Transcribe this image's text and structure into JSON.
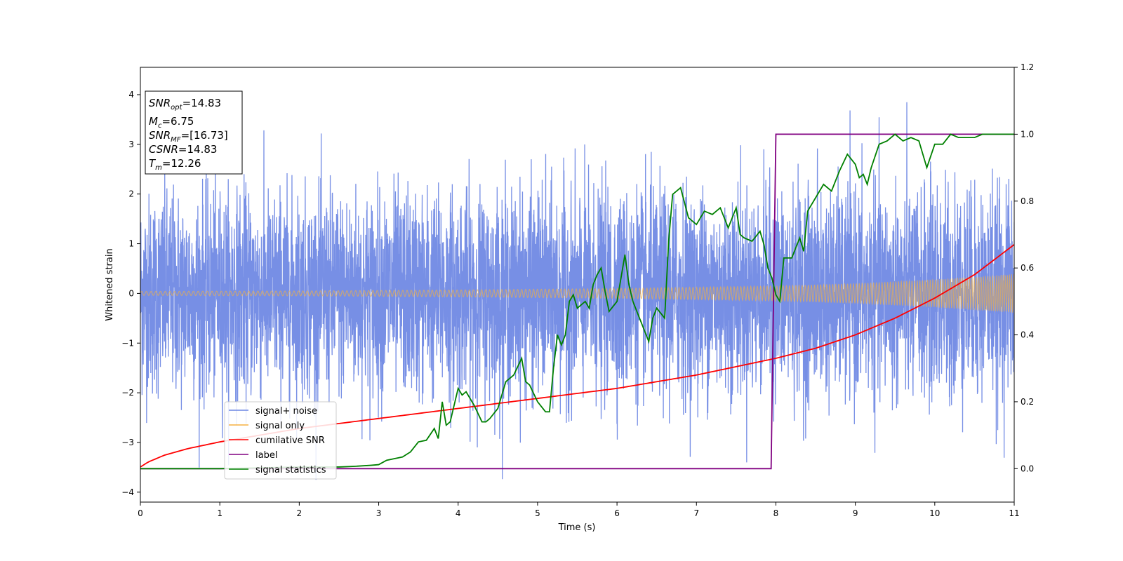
{
  "chart_data": {
    "type": "line",
    "xlabel": "Time (s)",
    "ylabel": "Whitened strain",
    "xlim": [
      0,
      11
    ],
    "ylim": [
      -4.2,
      4.55
    ],
    "y2lim": [
      -0.1,
      1.2
    ],
    "xticks": [
      "0",
      "1",
      "2",
      "3",
      "4",
      "5",
      "6",
      "7",
      "8",
      "9",
      "10",
      "11"
    ],
    "yticks": [
      "−4",
      "−3",
      "−2",
      "−1",
      "0",
      "1",
      "2",
      "3",
      "4"
    ],
    "y2ticks": [
      "0.0",
      "0.2",
      "0.4",
      "0.6",
      "0.8",
      "1.0",
      "1.2"
    ],
    "grid": false,
    "legend_position": "lower-left",
    "legend": [
      "signal+ noise",
      "signal only",
      "cumilative SNR",
      "label",
      "signal statistics"
    ],
    "colors": {
      "signal_noise": "#6b86e3",
      "signal_only": "#f5b041",
      "cumulative_snr": "#ff0000",
      "label": "#800080",
      "signal_statistics": "#008000"
    },
    "stats_box": {
      "snr_opt_label": "SNR",
      "snr_opt_sub": "opt",
      "snr_opt_value": "=14.83",
      "mc_label": "M",
      "mc_sub": "c",
      "mc_value": "=6.75",
      "snr_mf_label": "SNR",
      "snr_mf_sub": "MF",
      "snr_mf_value": "=[16.73]",
      "csnr_label": "CSNR",
      "csnr_value": "=14.83",
      "tm_label": "T",
      "tm_sub": "m",
      "tm_value": "=12.26"
    },
    "series": [
      {
        "name": "signal+ noise",
        "axis": "left",
        "description_values": "whitened noisy strain, roughly uniform envelope between -3.8 and 4.2",
        "peak_max": 4.2,
        "peak_min": -3.8,
        "typical_amplitude": 1.4
      },
      {
        "name": "signal only",
        "axis": "left",
        "envelope": {
          "x": [
            0,
            2,
            4,
            6,
            8,
            9,
            10,
            11
          ],
          "amplitude": [
            0.04,
            0.05,
            0.07,
            0.1,
            0.15,
            0.2,
            0.28,
            0.39
          ]
        }
      },
      {
        "name": "cumilative SNR",
        "axis": "right",
        "x": [
          0,
          0.1,
          0.3,
          0.6,
          1,
          2,
          3,
          4,
          5,
          6,
          7,
          8,
          8.5,
          9,
          9.5,
          10,
          10.5,
          11
        ],
        "y": [
          0.005,
          0.02,
          0.04,
          0.06,
          0.08,
          0.12,
          0.15,
          0.18,
          0.21,
          0.24,
          0.28,
          0.33,
          0.36,
          0.4,
          0.45,
          0.51,
          0.58,
          0.67
        ]
      },
      {
        "name": "label",
        "axis": "right",
        "x": [
          0,
          7.94,
          8.0,
          11
        ],
        "y": [
          0.0,
          0.0,
          1.0,
          1.0
        ]
      },
      {
        "name": "signal statistics",
        "axis": "right",
        "x": [
          0,
          1,
          2,
          2.5,
          2.7,
          2.9,
          3.0,
          3.1,
          3.2,
          3.3,
          3.4,
          3.5,
          3.6,
          3.7,
          3.75,
          3.8,
          3.85,
          3.9,
          4.0,
          4.05,
          4.1,
          4.15,
          4.2,
          4.3,
          4.35,
          4.4,
          4.5,
          4.6,
          4.7,
          4.8,
          4.85,
          4.9,
          5.0,
          5.1,
          5.15,
          5.2,
          5.25,
          5.3,
          5.35,
          5.4,
          5.45,
          5.5,
          5.6,
          5.65,
          5.7,
          5.75,
          5.8,
          5.85,
          5.9,
          6.0,
          6.1,
          6.15,
          6.2,
          6.3,
          6.4,
          6.45,
          6.5,
          6.6,
          6.65,
          6.7,
          6.8,
          6.9,
          7.0,
          7.1,
          7.2,
          7.3,
          7.4,
          7.5,
          7.55,
          7.6,
          7.7,
          7.8,
          7.85,
          7.9,
          7.95,
          8.0,
          8.05,
          8.1,
          8.2,
          8.3,
          8.35,
          8.4,
          8.5,
          8.6,
          8.7,
          8.8,
          8.9,
          9.0,
          9.05,
          9.1,
          9.15,
          9.2,
          9.3,
          9.4,
          9.5,
          9.6,
          9.7,
          9.8,
          9.9,
          10.0,
          10.1,
          10.2,
          10.3,
          10.4,
          10.5,
          10.6,
          10.7,
          10.8,
          11.0
        ],
        "y": [
          0.0,
          0.0,
          0.005,
          0.005,
          0.007,
          0.01,
          0.012,
          0.025,
          0.03,
          0.035,
          0.05,
          0.08,
          0.085,
          0.12,
          0.09,
          0.2,
          0.13,
          0.14,
          0.24,
          0.22,
          0.23,
          0.21,
          0.19,
          0.14,
          0.14,
          0.15,
          0.18,
          0.26,
          0.28,
          0.33,
          0.26,
          0.25,
          0.2,
          0.17,
          0.17,
          0.3,
          0.4,
          0.37,
          0.4,
          0.5,
          0.52,
          0.48,
          0.5,
          0.48,
          0.55,
          0.58,
          0.6,
          0.53,
          0.47,
          0.5,
          0.64,
          0.55,
          0.5,
          0.44,
          0.38,
          0.45,
          0.48,
          0.45,
          0.68,
          0.82,
          0.84,
          0.75,
          0.73,
          0.77,
          0.76,
          0.78,
          0.72,
          0.78,
          0.7,
          0.69,
          0.68,
          0.71,
          0.67,
          0.6,
          0.57,
          0.52,
          0.5,
          0.63,
          0.63,
          0.69,
          0.65,
          0.77,
          0.81,
          0.85,
          0.83,
          0.89,
          0.94,
          0.91,
          0.87,
          0.88,
          0.85,
          0.9,
          0.97,
          0.98,
          1.0,
          0.98,
          0.99,
          0.98,
          0.9,
          0.97,
          0.97,
          1.0,
          0.99,
          0.99,
          0.99,
          1.0,
          1.0,
          1.0,
          1.0
        ]
      }
    ]
  }
}
